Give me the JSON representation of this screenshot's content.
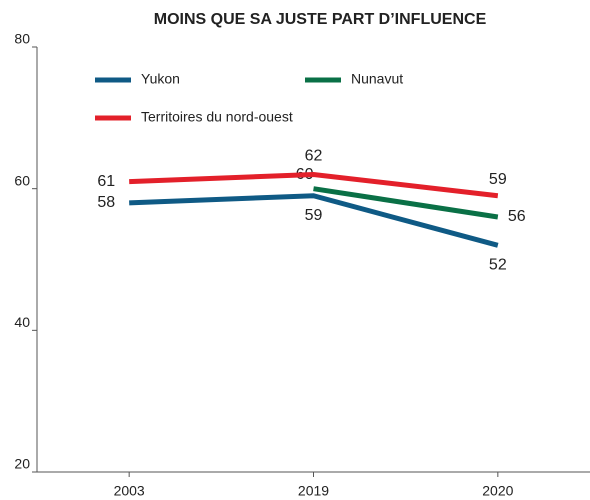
{
  "chart_data": {
    "type": "line",
    "title": "MOINS QUE SA JUSTE PART D’INFLUENCE",
    "categories": [
      "2003",
      "2019",
      "2020"
    ],
    "series": [
      {
        "name": "Yukon",
        "color": "#0f5a85",
        "values": [
          58,
          59,
          52
        ]
      },
      {
        "name": "Nunavut",
        "color": "#0a7046",
        "values": [
          null,
          60,
          56
        ]
      },
      {
        "name": "Territoires du nord-ouest",
        "color": "#e3202a",
        "values": [
          61,
          62,
          59
        ]
      }
    ],
    "ylim": [
      20,
      80
    ],
    "yticks": [
      20,
      40,
      60,
      80
    ],
    "grid": false
  }
}
